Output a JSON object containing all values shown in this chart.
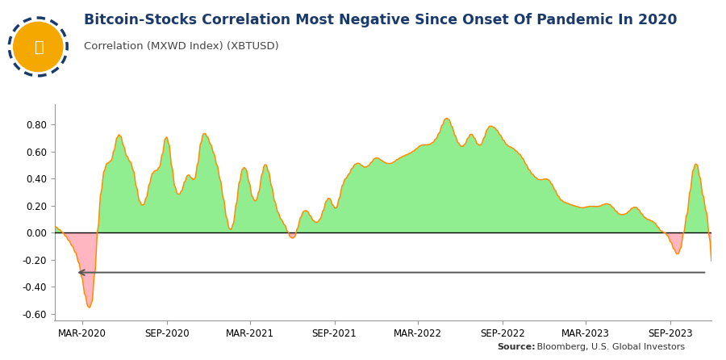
{
  "title": "Bitcoin-Stocks Correlation Most Negative Since Onset Of Pandemic In 2020",
  "subtitle": "Correlation (MXWD Index) (XBTUSD)",
  "source_bold": "Source:",
  "source_rest": " Bloomberg, U.S. Global Investors",
  "title_color": "#1a3a6b",
  "subtitle_color": "#444444",
  "line_color": "#FF8C00",
  "fill_positive_color": "#90EE90",
  "fill_negative_color": "#FFB6C1",
  "zero_line_color": "#000000",
  "arrow_color": "#555555",
  "background_color": "#FFFFFF",
  "ylim": [
    -0.65,
    0.95
  ],
  "yticks": [
    -0.6,
    -0.4,
    -0.2,
    0.0,
    0.2,
    0.4,
    0.6,
    0.8
  ],
  "xlabel_fontsize": 8.5,
  "ylabel_fontsize": 8.5,
  "title_fontsize": 12.5,
  "subtitle_fontsize": 9.5
}
